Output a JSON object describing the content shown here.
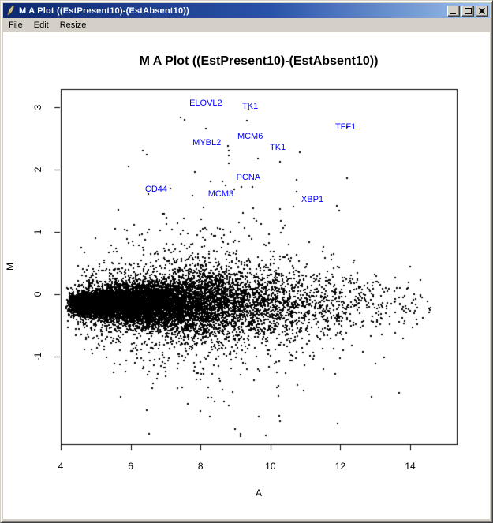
{
  "window": {
    "title": "M A Plot ((EstPresent10)-(EstAbsent10))",
    "icon": "r-feather",
    "controls": [
      "minimize",
      "maximize",
      "close"
    ]
  },
  "menu": {
    "items": [
      "File",
      "Edit",
      "Resize"
    ]
  },
  "chart_data": {
    "type": "scatter",
    "title": "M A Plot ((EstPresent10)-(EstAbsent10))",
    "xlabel": "A",
    "ylabel": "M",
    "xlim": [
      4,
      15.33
    ],
    "ylim": [
      -2.4,
      3.29
    ],
    "xticks": [
      4,
      6,
      8,
      10,
      12,
      14
    ],
    "yticks": [
      -1,
      0,
      1,
      2,
      3
    ],
    "grid": false,
    "legend": "none",
    "point_color": "#000000",
    "gene_label_color": "#0000ff",
    "labeled_genes": [
      {
        "gene": "ELOVL2",
        "a": 8.15,
        "m": 3.06
      },
      {
        "gene": "TK1",
        "a": 9.42,
        "m": 3.01
      },
      {
        "gene": "TFF1",
        "a": 12.15,
        "m": 2.68
      },
      {
        "gene": "MCM6",
        "a": 9.42,
        "m": 2.53
      },
      {
        "gene": "MYBL2",
        "a": 8.18,
        "m": 2.43
      },
      {
        "gene": "TK1",
        "a": 10.21,
        "m": 2.35
      },
      {
        "gene": "PCNA",
        "a": 9.37,
        "m": 1.87
      },
      {
        "gene": "CD44",
        "a": 6.73,
        "m": 1.68
      },
      {
        "gene": "MCM3",
        "a": 8.58,
        "m": 1.61
      },
      {
        "gene": "XBP1",
        "a": 11.2,
        "m": 1.52
      }
    ],
    "outlier_points": [
      [
        7.42,
        2.84
      ],
      [
        8.15,
        2.66
      ],
      [
        9.37,
        2.96
      ],
      [
        12.19,
        2.68
      ],
      [
        8.78,
        2.38
      ],
      [
        8.81,
        2.31
      ],
      [
        9.64,
        2.18
      ],
      [
        10.28,
        2.13
      ],
      [
        10.84,
        2.28
      ],
      [
        7.14,
        1.7
      ],
      [
        9.48,
        1.72
      ],
      [
        8.96,
        1.68
      ],
      [
        10.65,
        1.41
      ],
      [
        6.35,
        2.31
      ],
      [
        6.46,
        2.24
      ],
      [
        5.95,
        2.05
      ],
      [
        10.3,
        1.18
      ],
      [
        11.9,
        1.42
      ]
    ],
    "point_cloud": {
      "description": "approx 13000 microarray probes; M vs A wedge centered slightly below M=0, densest for A 4.5-10, sparse tail to A 14.6, outliers from M -2.3 to +3",
      "seed": 1234,
      "n": 13000,
      "a_start": 4.15,
      "a_scale": 1.45,
      "a_shape2": 0.9,
      "a_max": 14.65,
      "m_center": -0.15,
      "m_min": -2.32,
      "m_max": 2.95,
      "sigma_profile": [
        [
          4.15,
          0.07
        ],
        [
          5.0,
          0.1
        ],
        [
          6.0,
          0.14
        ],
        [
          7.0,
          0.2
        ],
        [
          8.5,
          0.28
        ],
        [
          10.0,
          0.3
        ],
        [
          11.5,
          0.26
        ],
        [
          13.0,
          0.22
        ],
        [
          14.7,
          0.2
        ]
      ],
      "tail1_prob": 0.14,
      "tail1_mult": 2.4,
      "tail2_prob": 0.025,
      "tail2_mult": 5.0
    }
  }
}
